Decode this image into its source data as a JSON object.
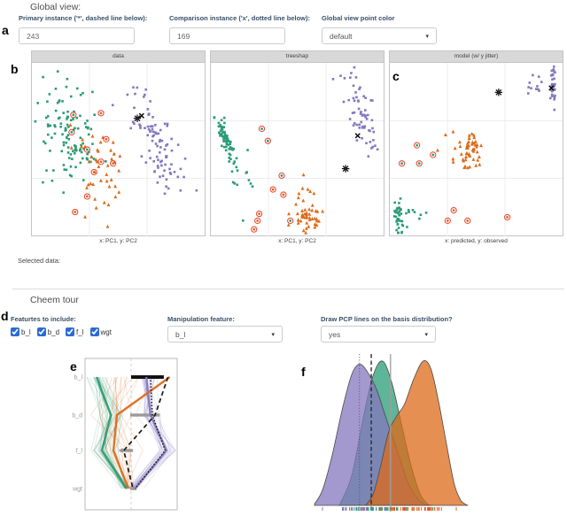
{
  "letters": {
    "a": "a",
    "b": "b",
    "c": "c",
    "d": "d",
    "e": "e",
    "f": "f"
  },
  "colors": {
    "green": "#2a9c74",
    "purple": "#8477bd",
    "orange": "#dd6a18",
    "red": "#e8402a",
    "black": "#111111",
    "gray_bar": "#9a9a9a",
    "grid": "#ececec",
    "accent_checkbox": "#2b6bd4"
  },
  "global_view": {
    "title": "Global view:",
    "primary_label": "Primary instance ('*', dashed line below):",
    "primary_value": "243",
    "comparison_label": "Comparison instance ('x', dotted line below):",
    "comparison_value": "169",
    "point_color_label": "Global view point color",
    "point_color_value": "default"
  },
  "selected_data_label": "Selected data:",
  "cheem_tour": {
    "title": "Cheem tour",
    "features_label": "Featurtes to include:",
    "features": [
      {
        "label": "b_l",
        "checked": true
      },
      {
        "label": "b_d",
        "checked": true
      },
      {
        "label": "f_l",
        "checked": true
      },
      {
        "label": "wgt",
        "checked": true
      }
    ],
    "manipulation_label": "Manipulation feature:",
    "manipulation_value": "b_l",
    "pcp_label": "Draw PCP lines on the basis distribution?",
    "pcp_value": "yes"
  },
  "chart_data": [
    {
      "id": "data",
      "type": "scatter",
      "title": "data",
      "caption": "x: PC1, y: PC2",
      "xlabel": "PC1",
      "ylabel": "PC2",
      "seed": 11,
      "clusters": [
        {
          "name": "green-cluster",
          "color": "green",
          "marker": "square",
          "n": 105,
          "cx": 0.2,
          "cy": 0.4,
          "sx": 0.075,
          "sy": 0.16,
          "angle": -8
        },
        {
          "name": "green-cluster-2",
          "color": "green",
          "marker": "square",
          "n": 12,
          "cx": 0.33,
          "cy": 0.52,
          "sx": 0.05,
          "sy": 0.1,
          "angle": 0
        },
        {
          "name": "orange-cluster",
          "color": "orange",
          "marker": "triangle",
          "n": 42,
          "cx": 0.37,
          "cy": 0.62,
          "sx": 0.075,
          "sy": 0.14,
          "angle": -10
        },
        {
          "name": "purple-cluster",
          "color": "purple",
          "marker": "square",
          "n": 92,
          "cx": 0.73,
          "cy": 0.46,
          "sx": 0.055,
          "sy": 0.16,
          "angle": -27
        }
      ],
      "circled": [
        {
          "x": 0.24,
          "y": 0.3,
          "inner": "green"
        },
        {
          "x": 0.23,
          "y": 0.4,
          "inner": "green"
        },
        {
          "x": 0.32,
          "y": 0.5,
          "inner": "green"
        },
        {
          "x": 0.4,
          "y": 0.29,
          "inner": "orange"
        },
        {
          "x": 0.43,
          "y": 0.44,
          "inner": "orange"
        },
        {
          "x": 0.4,
          "y": 0.57,
          "inner": "orange"
        },
        {
          "x": 0.36,
          "y": 0.63,
          "inner": "orange"
        },
        {
          "x": 0.47,
          "y": 0.58,
          "inner": "orange"
        },
        {
          "x": 0.32,
          "y": 0.77,
          "inner": "orange"
        },
        {
          "x": 0.25,
          "y": 0.86,
          "inner": "orange"
        }
      ],
      "primary_marker": {
        "x": 0.61,
        "y": 0.32
      },
      "comparison_marker": {
        "x": 0.635,
        "y": 0.305
      }
    },
    {
      "id": "treeshap",
      "type": "scatter",
      "title": "treeshap",
      "caption": "x: PC1, y: PC2",
      "xlabel": "PC1",
      "ylabel": "PC2",
      "seed": 22,
      "clusters": [
        {
          "name": "green-cluster",
          "color": "green",
          "marker": "square",
          "n": 62,
          "cx": 0.085,
          "cy": 0.44,
          "sx": 0.018,
          "sy": 0.075,
          "angle": -20
        },
        {
          "name": "green-cluster-2",
          "color": "green",
          "marker": "square",
          "n": 13,
          "cx": 0.18,
          "cy": 0.68,
          "sx": 0.05,
          "sy": 0.1,
          "angle": 0
        },
        {
          "name": "purple-cluster",
          "color": "purple",
          "marker": "square",
          "n": 55,
          "cx": 0.87,
          "cy": 0.3,
          "sx": 0.035,
          "sy": 0.11,
          "angle": -18
        },
        {
          "name": "purple-outliers",
          "color": "purple",
          "marker": "square",
          "n": 6,
          "cx": 0.8,
          "cy": 0.1,
          "sx": 0.05,
          "sy": 0.05,
          "angle": 0
        },
        {
          "name": "orange-cluster",
          "color": "orange",
          "marker": "triangle",
          "n": 40,
          "cx": 0.565,
          "cy": 0.895,
          "sx": 0.045,
          "sy": 0.035,
          "angle": 0
        },
        {
          "name": "orange-scatter",
          "color": "orange",
          "marker": "triangle",
          "n": 10,
          "cx": 0.55,
          "cy": 0.73,
          "sx": 0.05,
          "sy": 0.07,
          "angle": 0
        }
      ],
      "circled": [
        {
          "x": 0.295,
          "y": 0.38,
          "inner": "green"
        },
        {
          "x": 0.33,
          "y": 0.45,
          "inner": "green"
        },
        {
          "x": 0.41,
          "y": 0.65,
          "inner": "green"
        },
        {
          "x": 0.36,
          "y": 0.73,
          "inner": "orange"
        },
        {
          "x": 0.42,
          "y": 0.76,
          "inner": "orange"
        },
        {
          "x": 0.28,
          "y": 0.87,
          "inner": "orange"
        },
        {
          "x": 0.27,
          "y": 0.91,
          "inner": "orange"
        },
        {
          "x": 0.25,
          "y": 0.96,
          "inner": "orange"
        },
        {
          "x": 0.46,
          "y": 0.91,
          "inner": "green"
        }
      ],
      "primary_marker": {
        "x": 0.78,
        "y": 0.61
      },
      "comparison_marker": {
        "x": 0.85,
        "y": 0.42
      }
    },
    {
      "id": "model",
      "type": "scatter",
      "title": "model (w/ y jitter)",
      "caption": "x: predicted, y: observed",
      "xlabel": "predicted",
      "ylabel": "observed",
      "seed": 33,
      "clusters": [
        {
          "name": "purple-strip",
          "color": "purple",
          "marker": "square",
          "n": 32,
          "cx": 0.945,
          "cy": 0.13,
          "sx": 0.008,
          "sy": 0.05,
          "angle": 0
        },
        {
          "name": "purple-scatter",
          "color": "purple",
          "marker": "square",
          "n": 11,
          "cx": 0.81,
          "cy": 0.13,
          "sx": 0.055,
          "sy": 0.035,
          "angle": 0
        },
        {
          "name": "orange-blob",
          "color": "orange",
          "marker": "triangle",
          "n": 42,
          "cx": 0.475,
          "cy": 0.5,
          "sx": 0.025,
          "sy": 0.05,
          "angle": 0
        },
        {
          "name": "orange-scatter",
          "color": "orange",
          "marker": "triangle",
          "n": 12,
          "cx": 0.38,
          "cy": 0.52,
          "sx": 0.05,
          "sy": 0.05,
          "angle": 0
        },
        {
          "name": "green-strip",
          "color": "green",
          "marker": "square",
          "n": 38,
          "cx": 0.055,
          "cy": 0.885,
          "sx": 0.012,
          "sy": 0.05,
          "angle": 0
        },
        {
          "name": "green-scatter",
          "color": "green",
          "marker": "square",
          "n": 9,
          "cx": 0.14,
          "cy": 0.89,
          "sx": 0.04,
          "sy": 0.05,
          "angle": 0
        }
      ],
      "circled": [
        {
          "x": 0.157,
          "y": 0.475,
          "inner": "green"
        },
        {
          "x": 0.07,
          "y": 0.58,
          "inner": "green"
        },
        {
          "x": 0.17,
          "y": 0.58,
          "inner": "green"
        },
        {
          "x": 0.25,
          "y": 0.53,
          "inner": "green"
        },
        {
          "x": 0.37,
          "y": 0.85,
          "inner": "orange"
        },
        {
          "x": 0.335,
          "y": 0.91,
          "inner": "orange"
        },
        {
          "x": 0.45,
          "y": 0.91,
          "inner": "orange"
        },
        {
          "x": 0.68,
          "y": 0.89,
          "inner": "orange"
        }
      ],
      "primary_marker": {
        "x": 0.63,
        "y": 0.17
      },
      "comparison_marker": {
        "x": 0.935,
        "y": 0.145
      }
    },
    {
      "id": "pcp",
      "type": "parallel-coordinates",
      "seed": 44,
      "axes": [
        "b_l",
        "b_d",
        "f_l",
        "wgt"
      ],
      "axis_rows": [
        0.123,
        0.374,
        0.608,
        0.86
      ],
      "zero_line_x": 0.5,
      "bars": [
        {
          "axis": 0,
          "x1": 0.5,
          "x2": 0.855,
          "color": "#111111",
          "h": 4
        },
        {
          "axis": 1,
          "x1": 0.49,
          "x2": 0.81,
          "color": "#9a9a9a",
          "h": 3.4
        },
        {
          "axis": 2,
          "x1": 0.4,
          "x2": 0.52,
          "color": "#9a9a9a",
          "h": 3.4,
          "arrow": "left"
        },
        {
          "axis": 3,
          "x1": 0.49,
          "x2": 0.56,
          "color": "#9a9a9a",
          "h": 3.4
        }
      ],
      "bundles": [
        {
          "color": "green",
          "n": 26,
          "means": [
            0.13,
            0.28,
            0.19,
            0.45
          ],
          "jitter": [
            0.05,
            0.08,
            0.07,
            0.03
          ]
        },
        {
          "color": "purple",
          "n": 24,
          "means": [
            0.66,
            0.71,
            0.88,
            0.54
          ],
          "jitter": [
            0.06,
            0.07,
            0.06,
            0.04
          ]
        },
        {
          "color": "orange",
          "n": 16,
          "means": [
            0.42,
            0.3,
            0.4,
            0.47
          ],
          "jitter": [
            0.13,
            0.12,
            0.14,
            0.05
          ]
        }
      ],
      "thick": [
        {
          "color": "green",
          "values": [
            0.125,
            0.28,
            0.183,
            0.452
          ]
        },
        {
          "color": "purple",
          "values": [
            0.665,
            0.71,
            0.885,
            0.54
          ]
        },
        {
          "color": "orange",
          "values": [
            0.92,
            0.346,
            0.308,
            0.47
          ]
        }
      ],
      "primary_line": {
        "style": "dashed",
        "values": [
          0.9,
          0.76,
          0.42,
          0.52
        ]
      },
      "comparison_line": {
        "style": "dotted",
        "values": [
          0.71,
          0.73,
          0.87,
          0.545
        ]
      }
    },
    {
      "id": "density",
      "type": "area",
      "seed": 55,
      "curves": [
        {
          "name": "green",
          "color": "green",
          "points": [
            [
              0.16,
              0
            ],
            [
              0.24,
              0.2
            ],
            [
              0.32,
              0.62
            ],
            [
              0.38,
              0.88
            ],
            [
              0.44,
              0.97
            ],
            [
              0.5,
              0.82
            ],
            [
              0.56,
              0.55
            ],
            [
              0.62,
              0.28
            ],
            [
              0.68,
              0.08
            ],
            [
              0.73,
              0.01
            ],
            [
              0.76,
              0
            ]
          ]
        },
        {
          "name": "purple",
          "color": "purple",
          "points": [
            [
              0.0,
              0.01
            ],
            [
              0.05,
              0.1
            ],
            [
              0.11,
              0.32
            ],
            [
              0.18,
              0.65
            ],
            [
              0.24,
              0.88
            ],
            [
              0.29,
              0.95
            ],
            [
              0.34,
              0.9
            ],
            [
              0.4,
              0.78
            ],
            [
              0.47,
              0.56
            ],
            [
              0.54,
              0.35
            ],
            [
              0.6,
              0.16
            ],
            [
              0.66,
              0.05
            ],
            [
              0.71,
              0.01
            ],
            [
              0.75,
              0
            ]
          ]
        },
        {
          "name": "orange",
          "color": "orange",
          "points": [
            [
              0.33,
              0
            ],
            [
              0.38,
              0.08
            ],
            [
              0.43,
              0.28
            ],
            [
              0.48,
              0.5
            ],
            [
              0.53,
              0.6
            ],
            [
              0.58,
              0.68
            ],
            [
              0.64,
              0.85
            ],
            [
              0.7,
              0.97
            ],
            [
              0.75,
              0.92
            ],
            [
              0.8,
              0.7
            ],
            [
              0.85,
              0.42
            ],
            [
              0.9,
              0.15
            ],
            [
              0.94,
              0.04
            ],
            [
              0.97,
              0.01
            ],
            [
              0.99,
              0
            ]
          ]
        }
      ],
      "vlines": [
        {
          "x": 0.29,
          "style": "dotted",
          "name": "comparison-instance-line"
        },
        {
          "x": 0.366,
          "style": "dashed",
          "name": "primary-instance-line"
        },
        {
          "x": 0.49,
          "style": "solid",
          "name": "basis-position-line"
        }
      ],
      "rug": {
        "groups": [
          {
            "color": "purple",
            "n": 34,
            "mean": 0.3,
            "sd": 0.11
          },
          {
            "color": "green",
            "n": 28,
            "mean": 0.43,
            "sd": 0.12
          },
          {
            "color": "orange",
            "n": 36,
            "mean": 0.64,
            "sd": 0.11
          },
          {
            "color": "red",
            "n": 9,
            "mean": 0.55,
            "sd": 0.2
          }
        ]
      }
    }
  ]
}
